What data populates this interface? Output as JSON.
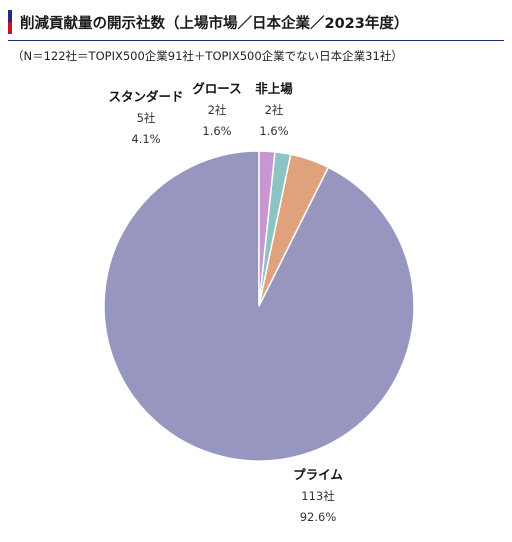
{
  "title": "削減貢献量の開示社数（上場市場／日本企業／2023年度）",
  "subtitle": "（N＝122社＝TOPIX500企業91社＋TOPIX500企業でない日本企業31社）",
  "colors": {
    "title_bar_top": "#1f2d7a",
    "title_bar_bottom": "#c8102e",
    "rule": "#1f2d7a",
    "slice_stroke": "#ffffff"
  },
  "chart_data": {
    "type": "pie",
    "title": "削減貢献量の開示社数（上場市場／日本企業／2023年度）",
    "subtitle": "（N＝122社＝TOPIX500企業91社＋TOPIX500企業でない日本企業31社）",
    "start": "12 o'clock",
    "direction": "counterclockwise",
    "slices": [
      {
        "label": "プライム",
        "count": 113,
        "count_label": "113社",
        "percent": 92.6,
        "percent_label": "92.6%",
        "color": "#9696c0"
      },
      {
        "label": "スタンダード",
        "count": 5,
        "count_label": "5社",
        "percent": 4.1,
        "percent_label": "4.1%",
        "color": "#e0a27c"
      },
      {
        "label": "グロース",
        "count": 2,
        "count_label": "2社",
        "percent": 1.6,
        "percent_label": "1.6%",
        "color": "#8dc3c3"
      },
      {
        "label": "非上場",
        "count": 2,
        "count_label": "2社",
        "percent": 1.6,
        "percent_label": "1.6%",
        "color": "#c996d4"
      }
    ]
  }
}
